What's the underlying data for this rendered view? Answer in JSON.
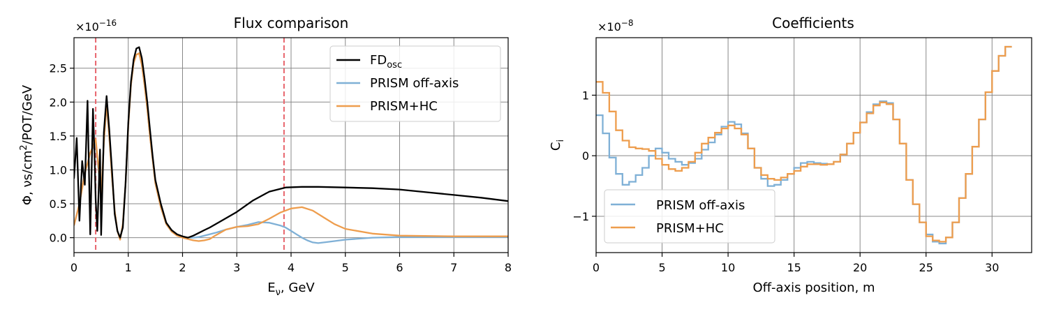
{
  "chart_data": [
    {
      "type": "line",
      "title": "Flux comparison",
      "xlabel": "E",
      "xlabel_sub": "ν",
      "xlabel_suffix": ", GeV",
      "ylabel_pre": "Φ, νs/cm",
      "ylabel_sup": "2",
      "ylabel_post": "/POT/GeV",
      "scale_base": "×10",
      "scale_exp": "−16",
      "xlim": [
        0,
        8
      ],
      "ylim": [
        -0.22,
        2.95
      ],
      "xticks": [
        0,
        1,
        2,
        3,
        4,
        5,
        6,
        7,
        8
      ],
      "yticks": [
        0.0,
        0.5,
        1.0,
        1.5,
        2.0,
        2.5
      ],
      "grid": true,
      "legend_position": "top-right",
      "vlines": [
        0.4,
        3.87
      ],
      "vline_color": "#e8636b",
      "series": [
        {
          "name": "FD",
          "name_sub": "osc",
          "color": "#000000",
          "x": [
            0.0,
            0.05,
            0.1,
            0.15,
            0.2,
            0.25,
            0.3,
            0.35,
            0.38,
            0.4,
            0.43,
            0.48,
            0.5,
            0.55,
            0.6,
            0.65,
            0.7,
            0.75,
            0.8,
            0.85,
            0.9,
            0.95,
            1.0,
            1.05,
            1.1,
            1.15,
            1.2,
            1.25,
            1.3,
            1.35,
            1.4,
            1.45,
            1.5,
            1.6,
            1.7,
            1.8,
            1.9,
            2.0,
            2.1,
            2.2,
            2.3,
            2.4,
            2.5,
            2.7,
            3.0,
            3.3,
            3.6,
            3.9,
            4.2,
            4.5,
            5.0,
            5.5,
            6.0,
            6.5,
            7.0,
            7.5,
            8.0
          ],
          "y": [
            0.87,
            1.47,
            0.25,
            1.13,
            0.78,
            2.02,
            0.05,
            1.9,
            1.2,
            0.55,
            0.1,
            1.3,
            0.04,
            1.55,
            2.09,
            1.6,
            1.0,
            0.35,
            0.1,
            0.0,
            0.15,
            0.8,
            1.7,
            2.3,
            2.63,
            2.79,
            2.81,
            2.65,
            2.35,
            2.0,
            1.6,
            1.2,
            0.85,
            0.5,
            0.22,
            0.11,
            0.05,
            0.02,
            0.0,
            0.03,
            0.07,
            0.11,
            0.15,
            0.24,
            0.38,
            0.55,
            0.68,
            0.74,
            0.75,
            0.75,
            0.74,
            0.73,
            0.71,
            0.67,
            0.63,
            0.59,
            0.54
          ]
        },
        {
          "name": "PRISM off-axis",
          "color": "#7fb0d6",
          "x": [
            0.0,
            0.1,
            0.2,
            0.3,
            0.4,
            0.45,
            0.5,
            0.55,
            0.6,
            0.65,
            0.7,
            0.75,
            0.8,
            0.85,
            0.9,
            0.95,
            1.0,
            1.05,
            1.1,
            1.15,
            1.2,
            1.25,
            1.3,
            1.35,
            1.4,
            1.45,
            1.5,
            1.6,
            1.7,
            1.8,
            1.9,
            2.0,
            2.1,
            2.2,
            2.3,
            2.4,
            2.5,
            2.6,
            2.8,
            3.0,
            3.2,
            3.4,
            3.6,
            3.8,
            3.9,
            4.0,
            4.1,
            4.2,
            4.3,
            4.4,
            4.5,
            4.7,
            5.0,
            5.5,
            6.0,
            7.0,
            8.0
          ],
          "y": [
            0.18,
            0.5,
            0.95,
            1.25,
            1.4,
            1.0,
            0.55,
            1.4,
            1.95,
            1.5,
            0.9,
            0.4,
            0.1,
            -0.02,
            0.2,
            0.8,
            1.65,
            2.25,
            2.58,
            2.7,
            2.72,
            2.55,
            2.25,
            1.9,
            1.5,
            1.15,
            0.8,
            0.45,
            0.2,
            0.09,
            0.04,
            0.01,
            0.0,
            0.0,
            0.01,
            0.03,
            0.05,
            0.07,
            0.12,
            0.16,
            0.19,
            0.23,
            0.22,
            0.18,
            0.15,
            0.1,
            0.05,
            0.0,
            -0.04,
            -0.07,
            -0.08,
            -0.06,
            -0.03,
            0.0,
            0.01,
            0.01,
            0.01
          ]
        },
        {
          "name": "PRISM+HC",
          "color": "#ee9d4d",
          "x": [
            0.0,
            0.1,
            0.2,
            0.3,
            0.4,
            0.45,
            0.5,
            0.55,
            0.6,
            0.65,
            0.7,
            0.75,
            0.8,
            0.85,
            0.9,
            0.95,
            1.0,
            1.05,
            1.1,
            1.15,
            1.2,
            1.25,
            1.3,
            1.35,
            1.4,
            1.45,
            1.5,
            1.6,
            1.7,
            1.8,
            1.9,
            2.0,
            2.1,
            2.2,
            2.3,
            2.4,
            2.5,
            2.6,
            2.8,
            3.0,
            3.2,
            3.4,
            3.6,
            3.8,
            4.0,
            4.2,
            4.4,
            4.6,
            4.8,
            5.0,
            5.5,
            6.0,
            7.0,
            8.0
          ],
          "y": [
            0.18,
            0.5,
            0.95,
            1.25,
            1.45,
            1.05,
            0.6,
            1.4,
            1.98,
            1.5,
            0.9,
            0.4,
            0.1,
            -0.03,
            0.2,
            0.8,
            1.65,
            2.25,
            2.58,
            2.7,
            2.72,
            2.55,
            2.25,
            1.9,
            1.5,
            1.15,
            0.8,
            0.45,
            0.2,
            0.09,
            0.03,
            0.0,
            -0.02,
            -0.04,
            -0.05,
            -0.04,
            -0.02,
            0.03,
            0.12,
            0.16,
            0.17,
            0.2,
            0.28,
            0.37,
            0.43,
            0.45,
            0.4,
            0.3,
            0.2,
            0.13,
            0.06,
            0.03,
            0.02,
            0.02
          ]
        }
      ]
    },
    {
      "type": "line",
      "title": "Coefficients",
      "xlabel": "Off-axis position, m",
      "ylabel": "C",
      "ylabel_sub": "i",
      "scale_base": "×10",
      "scale_exp": "−8",
      "xlim": [
        0,
        33
      ],
      "ylim": [
        -1.6,
        1.95
      ],
      "xticks": [
        0,
        5,
        10,
        15,
        20,
        25,
        30
      ],
      "yticks": [
        -1,
        0,
        1
      ],
      "grid": true,
      "legend_position": "bottom-left",
      "step": 0.5,
      "series": [
        {
          "name": "PRISM off-axis",
          "color": "#7fb0d6",
          "values": [
            0.67,
            0.37,
            -0.03,
            -0.3,
            -0.48,
            -0.43,
            -0.32,
            -0.2,
            0.0,
            0.12,
            0.05,
            -0.05,
            -0.1,
            -0.15,
            -0.12,
            -0.05,
            0.1,
            0.22,
            0.35,
            0.48,
            0.56,
            0.52,
            0.37,
            0.12,
            -0.2,
            -0.38,
            -0.5,
            -0.48,
            -0.4,
            -0.3,
            -0.2,
            -0.12,
            -0.1,
            -0.12,
            -0.13,
            -0.14,
            -0.1,
            0.02,
            0.2,
            0.38,
            0.55,
            0.72,
            0.85,
            0.9,
            0.87,
            0.6,
            0.2,
            -0.4,
            -0.8,
            -1.1,
            -1.3,
            -1.42,
            -1.45,
            -1.35,
            -1.1,
            -0.7,
            -0.3,
            0.15,
            0.6,
            1.05,
            1.4,
            1.65,
            1.8
          ]
        },
        {
          "name": "PRISM+HC",
          "color": "#ee9d4d",
          "values": [
            1.22,
            1.04,
            0.73,
            0.42,
            0.25,
            0.14,
            0.12,
            0.11,
            0.08,
            -0.05,
            -0.15,
            -0.22,
            -0.25,
            -0.2,
            -0.1,
            0.05,
            0.2,
            0.3,
            0.38,
            0.45,
            0.5,
            0.45,
            0.35,
            0.12,
            -0.2,
            -0.32,
            -0.38,
            -0.4,
            -0.36,
            -0.3,
            -0.25,
            -0.18,
            -0.14,
            -0.14,
            -0.15,
            -0.14,
            -0.1,
            0.02,
            0.2,
            0.38,
            0.55,
            0.7,
            0.83,
            0.88,
            0.85,
            0.6,
            0.2,
            -0.4,
            -0.8,
            -1.1,
            -1.33,
            -1.4,
            -1.42,
            -1.35,
            -1.1,
            -0.7,
            -0.3,
            0.15,
            0.6,
            1.05,
            1.4,
            1.65,
            1.8
          ]
        }
      ]
    }
  ]
}
